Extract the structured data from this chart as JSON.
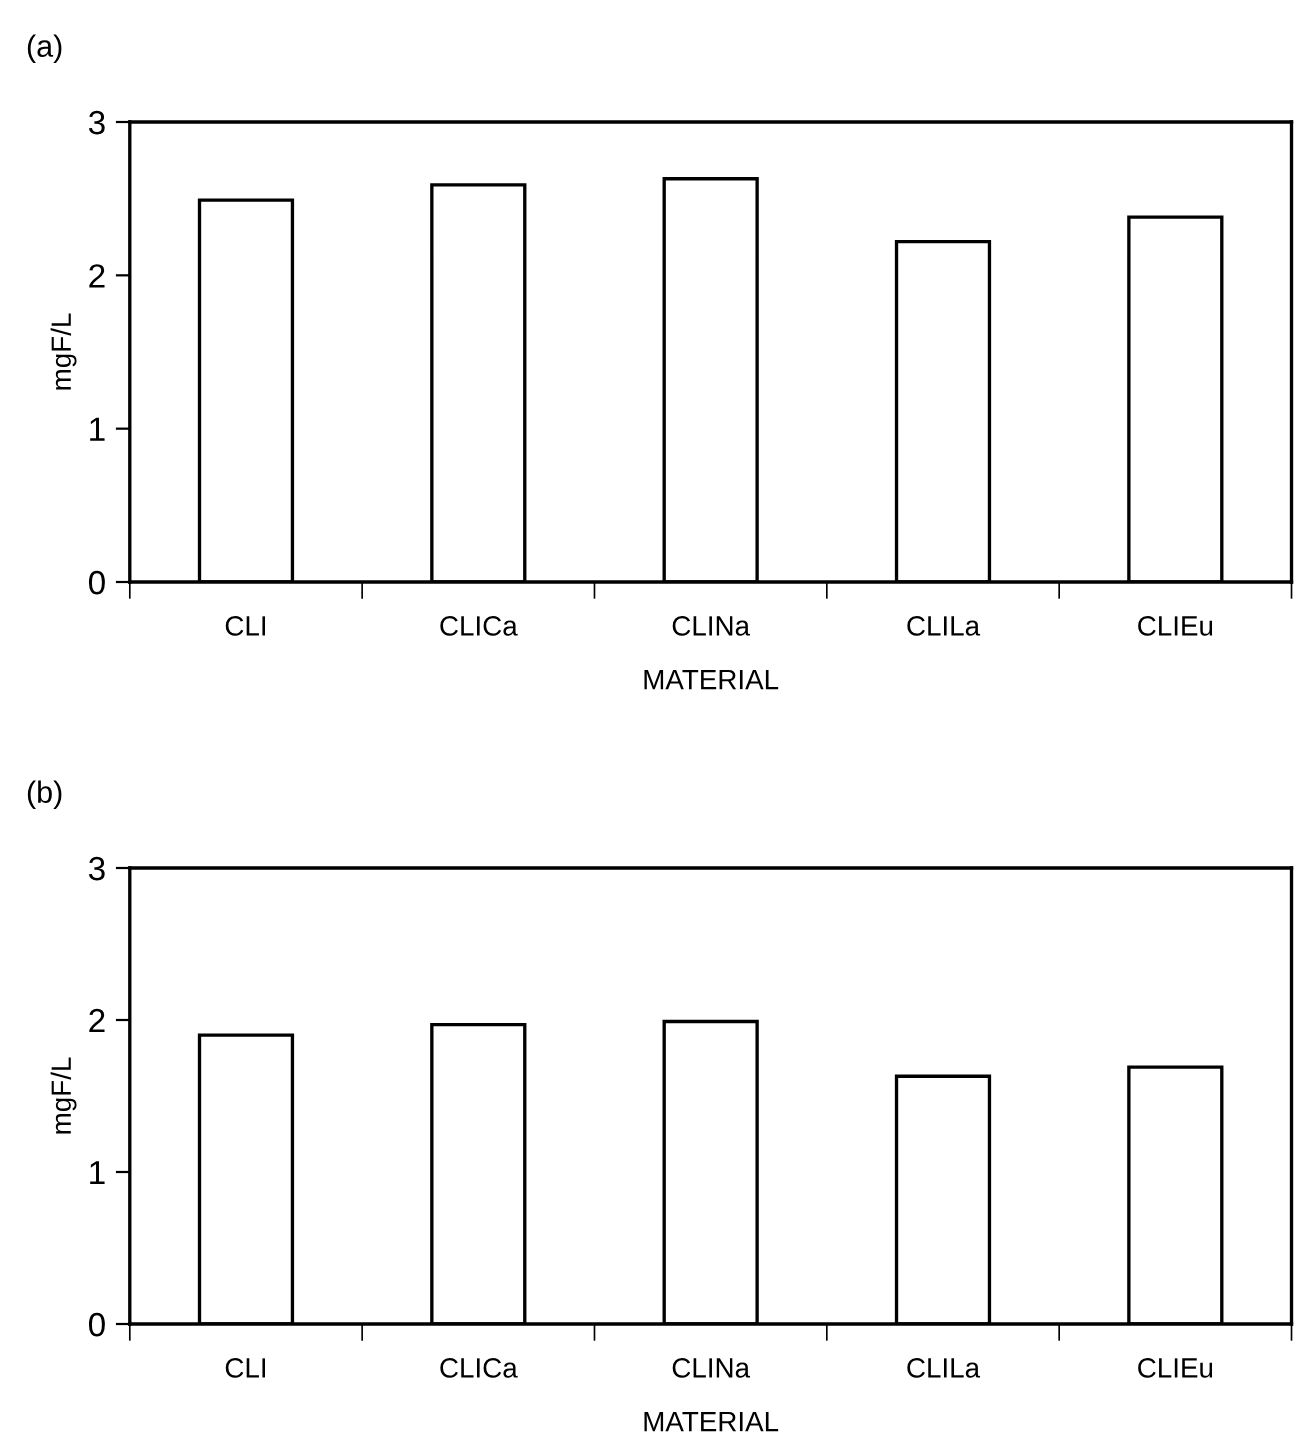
{
  "chart_data": [
    {
      "type": "bar",
      "title": "(a)",
      "xlabel": "MATERIAL",
      "ylabel": "mgF/L",
      "categories": [
        "CLI",
        "CLICa",
        "CLINa",
        "CLILa",
        "CLIEu"
      ],
      "values": [
        2.49,
        2.59,
        2.63,
        2.22,
        2.38
      ],
      "color": "#ffffff",
      "ylim": [
        0,
        3
      ],
      "yticks": [
        0,
        1,
        2,
        3
      ],
      "grid": false,
      "legend": false
    },
    {
      "type": "bar",
      "title": "(b)",
      "xlabel": "MATERIAL",
      "ylabel": "mgF/L",
      "categories": [
        "CLI",
        "CLICa",
        "CLINa",
        "CLILa",
        "CLIEu"
      ],
      "values": [
        1.9,
        1.97,
        1.99,
        1.63,
        1.69
      ],
      "color": "#ffffff",
      "ylim": [
        0,
        3
      ],
      "yticks": [
        0,
        1,
        2,
        3
      ],
      "grid": false,
      "legend": false
    }
  ]
}
